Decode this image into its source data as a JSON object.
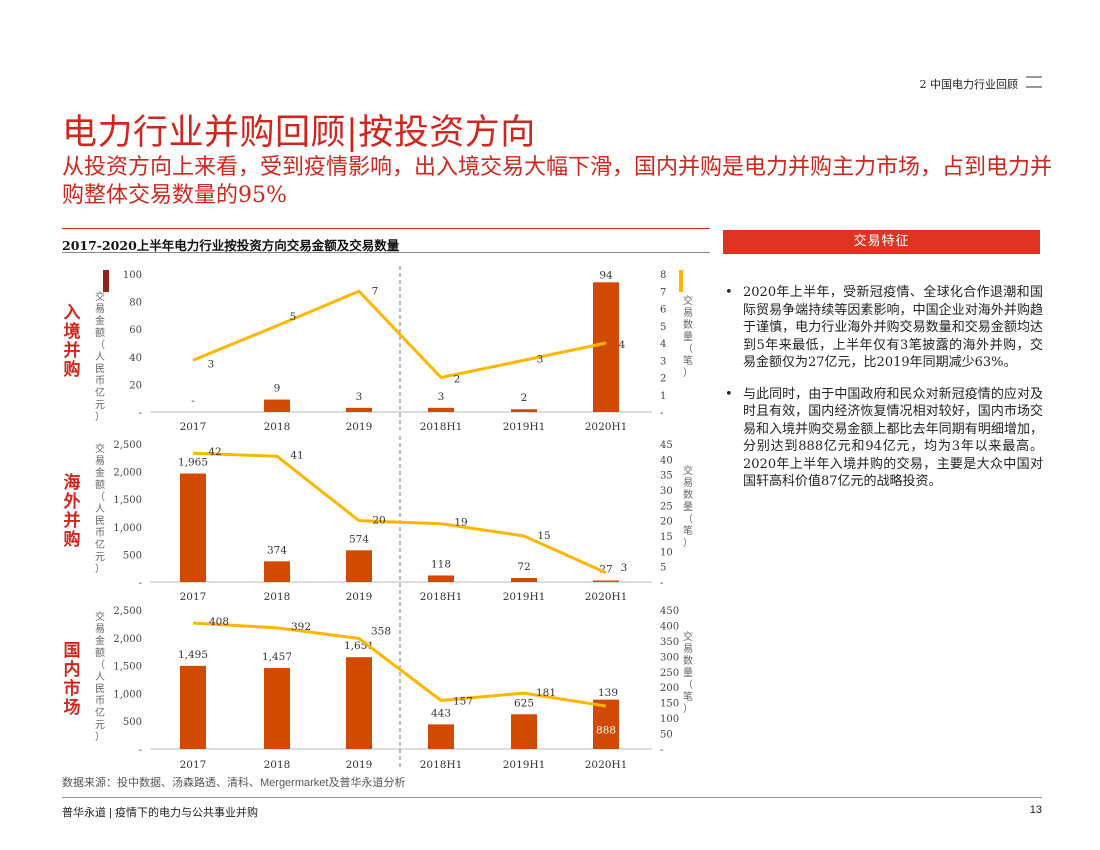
{
  "breadcrumb": "2 中国电力行业回顾",
  "title": "电力行业并购回顾|按投资方向",
  "subtitle": "从投资方向上来看，受到疫情影响，出入境交易大幅下滑，国内并购是电力并购主力市场，占到电力并购整体交易数量的95%",
  "chart_header": "2017-2020上半年电力行业按投资方向交易金额及交易数量",
  "feature_banner": "交易特征",
  "features": [
    "2020年上半年，受新冠疫情、全球化合作退潮和国际贸易争端持续等因素影响，中国企业对海外并购趋于谨慎，电力行业海外并购交易数量和交易金额均达到5年来最低，上半年仅有3笔披露的海外并购，交易金额仅为27亿元，比2019年同期减少63%。",
    "与此同时，由于中国政府和民众对新冠疫情的应对及时且有效，国内经济恢复情况相对较好，国内市场交易和入境并购交易金额上都比去年同期有明细增加，分别达到888亿元和94亿元，均为3年以来最高。2020年上半年入境并购的交易，主要是大众中国对国轩高科价值87亿元的战略投资。"
  ],
  "bullet": "•",
  "source": "数据来源：投中数据、汤森路透、清科、Mergermarket及普华永道分析",
  "footer_left": "普华永道 | 疫情下的电力与公共事业并购",
  "footer_page": "13",
  "colors": {
    "accent": "#d0261c",
    "bar": "#d04a02",
    "line": "#ffb600",
    "banner": "#df3422"
  },
  "chart_data": [
    {
      "type": "bar+line",
      "panel_label": "入境并购",
      "categories": [
        "2017",
        "2018",
        "2019",
        "2018H1",
        "2019H1",
        "2020H1"
      ],
      "y_left_label": "交易金额（人民币亿元）",
      "y_right_label": "交易数量（笔）",
      "y_left_ticks": [
        "100",
        "80",
        "60",
        "40",
        "20",
        "-"
      ],
      "y_right_ticks": [
        "8",
        "7",
        "6",
        "5",
        "4",
        "3",
        "2",
        "1",
        "-"
      ],
      "ylim_left": [
        0,
        100
      ],
      "ylim_right": [
        0,
        8
      ],
      "bar_values": [
        0,
        9,
        3,
        3,
        2,
        94
      ],
      "bar_labels": [
        "-",
        "9",
        "3",
        "3",
        "2",
        "94"
      ],
      "line_values": [
        3,
        5,
        7,
        2,
        3,
        4
      ],
      "line_labels": [
        "3",
        "5",
        "7",
        "2",
        "3",
        "4"
      ],
      "divider_after_index": 2
    },
    {
      "type": "bar+line",
      "panel_label": "海外并购",
      "categories": [
        "2017",
        "2018",
        "2019",
        "2018H1",
        "2019H1",
        "2020H1"
      ],
      "y_left_label": "交易金额（人民币亿元）",
      "y_right_label": "交易数量（笔）",
      "y_left_ticks": [
        "2,500",
        "2,000",
        "1,500",
        "1,000",
        "500",
        "-"
      ],
      "y_right_ticks": [
        "45",
        "40",
        "35",
        "30",
        "25",
        "20",
        "15",
        "10",
        "5",
        "-"
      ],
      "ylim_left": [
        0,
        2500
      ],
      "ylim_right": [
        0,
        45
      ],
      "bar_values": [
        1965,
        374,
        574,
        118,
        72,
        27
      ],
      "bar_labels": [
        "1,965",
        "374",
        "574",
        "118",
        "72",
        "27"
      ],
      "line_values": [
        42,
        41,
        20,
        19,
        15,
        3
      ],
      "line_labels": [
        "42",
        "41",
        "20",
        "19",
        "15",
        "3"
      ],
      "divider_after_index": 2
    },
    {
      "type": "bar+line",
      "panel_label": "国内市场",
      "categories": [
        "2017",
        "2018",
        "2019",
        "2018H1",
        "2019H1",
        "2020H1"
      ],
      "y_left_label": "交易金额（人民币亿元）",
      "y_right_label": "交易数量（笔）",
      "y_left_ticks": [
        "2,500",
        "2,000",
        "1,500",
        "1,000",
        "500",
        "-"
      ],
      "y_right_ticks": [
        "450",
        "400",
        "350",
        "300",
        "250",
        "200",
        "150",
        "100",
        "50",
        "-"
      ],
      "ylim_left": [
        0,
        2500
      ],
      "ylim_right": [
        0,
        450
      ],
      "bar_values": [
        1495,
        1457,
        1651,
        443,
        625,
        888
      ],
      "bar_labels": [
        "1,495",
        "1,457",
        "1,651",
        "443",
        "625",
        "888"
      ],
      "line_values": [
        408,
        392,
        358,
        157,
        181,
        139
      ],
      "line_labels": [
        "408",
        "392",
        "358",
        "157",
        "181",
        "139"
      ],
      "divider_after_index": 2
    }
  ]
}
